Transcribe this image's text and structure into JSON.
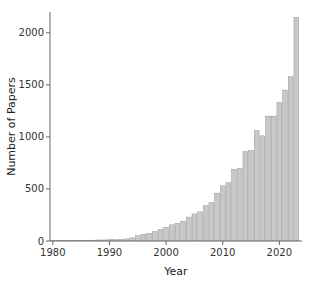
{
  "chart_data": {
    "type": "bar",
    "x": [
      1980,
      1981,
      1982,
      1983,
      1984,
      1985,
      1986,
      1987,
      1988,
      1989,
      1990,
      1991,
      1992,
      1993,
      1994,
      1995,
      1996,
      1997,
      1998,
      1999,
      2000,
      2001,
      2002,
      2003,
      2004,
      2005,
      2006,
      2007,
      2008,
      2009,
      2010,
      2011,
      2012,
      2013,
      2014,
      2015,
      2016,
      2017,
      2018,
      2019,
      2020,
      2021,
      2022,
      2023
    ],
    "values": [
      5,
      5,
      5,
      5,
      5,
      5,
      8,
      8,
      10,
      10,
      12,
      12,
      15,
      20,
      30,
      50,
      65,
      75,
      90,
      110,
      130,
      155,
      170,
      190,
      230,
      260,
      280,
      340,
      370,
      460,
      530,
      560,
      690,
      700,
      860,
      870,
      1060,
      1010,
      1200,
      1200,
      1330,
      1450,
      1580,
      2150
    ],
    "color": "#c8c8c8",
    "xlabel": "Year",
    "ylabel": "Number of Papers",
    "xlim": [
      1979.5,
      2024
    ],
    "ylim": [
      0,
      2200
    ],
    "xticks": [
      1980,
      1990,
      2000,
      2010,
      2020
    ],
    "yticks": [
      0,
      500,
      1000,
      1500,
      2000
    ],
    "grid": false
  }
}
